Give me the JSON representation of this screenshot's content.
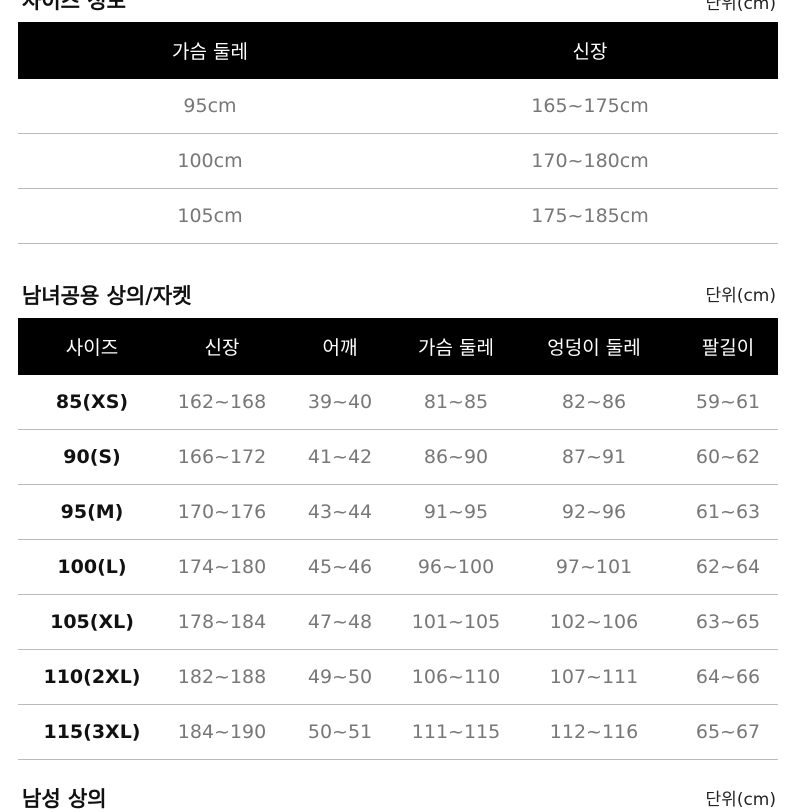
{
  "section1": {
    "title": "사이즈 정보",
    "unit": "단위(cm)",
    "headers": [
      "가슴 둘레",
      "신장"
    ],
    "rows": [
      [
        "95cm",
        "165~175cm"
      ],
      [
        "100cm",
        "170~180cm"
      ],
      [
        "105cm",
        "175~185cm"
      ]
    ]
  },
  "section2": {
    "title": "남녀공용 상의/자켓",
    "unit": "단위(cm)",
    "headers": [
      "사이즈",
      "신장",
      "어깨",
      "가슴 둘레",
      "엉덩이 둘레",
      "팔길이"
    ],
    "rows": [
      [
        "85(XS)",
        "162~168",
        "39~40",
        "81~85",
        "82~86",
        "59~61"
      ],
      [
        "90(S)",
        "166~172",
        "41~42",
        "86~90",
        "87~91",
        "60~62"
      ],
      [
        "95(M)",
        "170~176",
        "43~44",
        "91~95",
        "92~96",
        "61~63"
      ],
      [
        "100(L)",
        "174~180",
        "45~46",
        "96~100",
        "97~101",
        "62~64"
      ],
      [
        "105(XL)",
        "178~184",
        "47~48",
        "101~105",
        "102~106",
        "63~65"
      ],
      [
        "110(2XL)",
        "182~188",
        "49~50",
        "106~110",
        "107~111",
        "64~66"
      ],
      [
        "115(3XL)",
        "184~190",
        "50~51",
        "111~115",
        "112~116",
        "65~67"
      ]
    ]
  },
  "section3": {
    "title": "남성 상의",
    "unit": "단위(cm)"
  }
}
